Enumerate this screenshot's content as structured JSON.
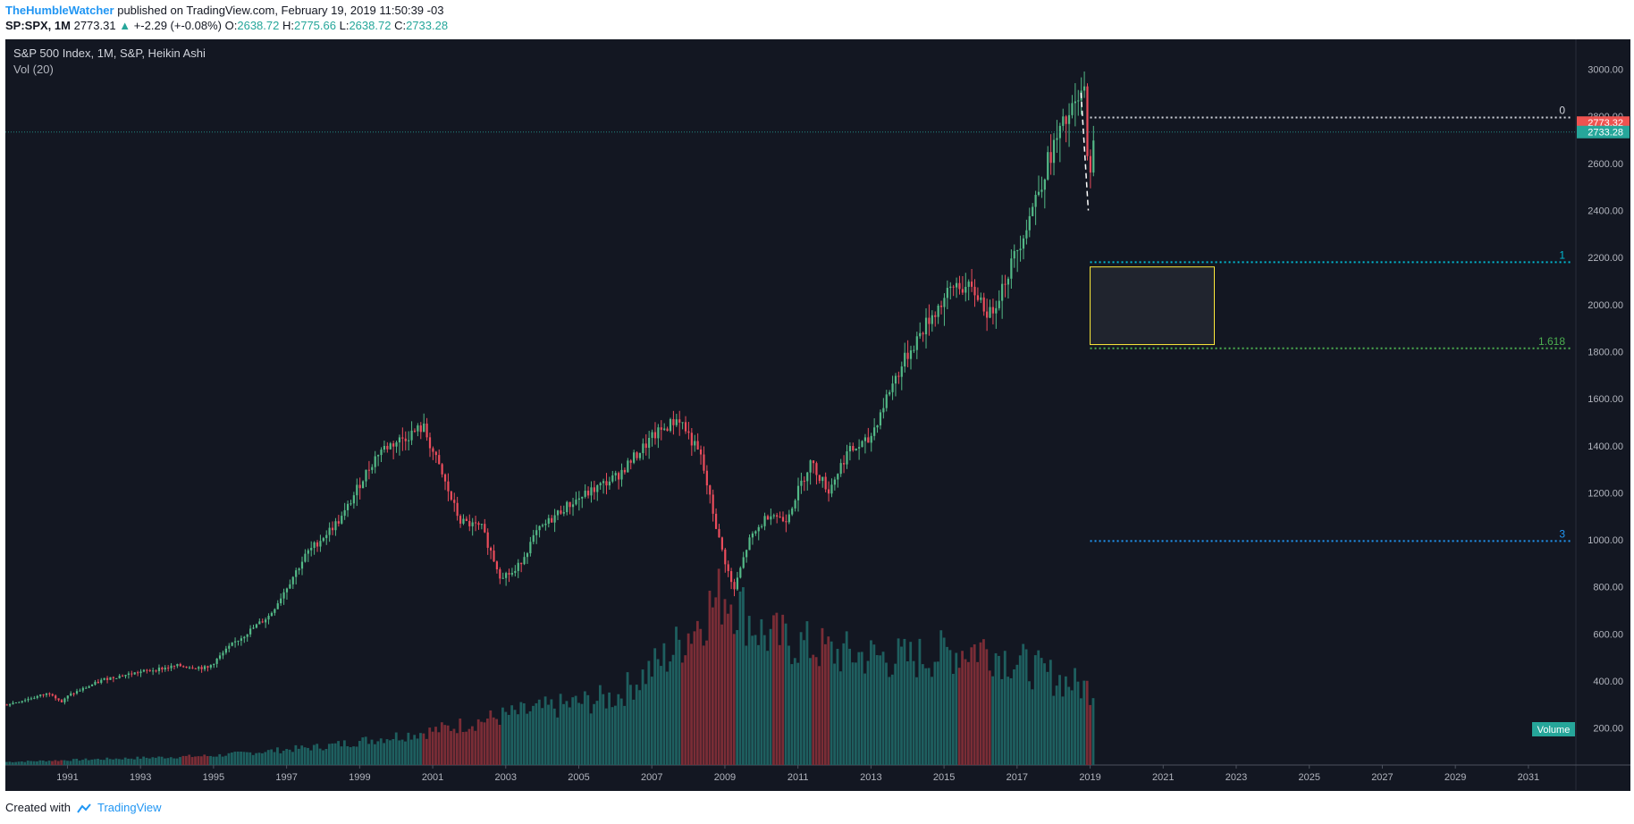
{
  "header": {
    "author": "TheHumbleWatcher",
    "published": "published on TradingView.com, February 19, 2019 11:50:39 -03",
    "symbol": "SP:SPX, 1M",
    "last": "2773.31",
    "change": "+-2.29 (+-0.08%)",
    "o_label": "O:",
    "o_value": "2638.72",
    "h_label": "H:",
    "h_value": "2775.66",
    "l_label": "L:",
    "l_value": "2638.72",
    "c_label": "C:",
    "c_value": "2733.28"
  },
  "legend": {
    "title": "S&P 500 Index, 1M, S&P, Heikin Ashi",
    "volume_study": "Vol (20)"
  },
  "footer": {
    "created_with": "Created with",
    "brand": "TradingView"
  },
  "colors": {
    "background": "#131722",
    "up": "#53b987",
    "down": "#eb4d5c",
    "volume_up": "#1e5f5f",
    "volume_down": "#7a2d36",
    "fib_0": "#d1d4dc",
    "fib_1": "#00bcd4",
    "fib_1618": "#4caf50",
    "fib_3": "#2196f3",
    "box_border": "#ffeb3b"
  },
  "chart_data": {
    "type": "candlestick",
    "title": "S&P 500 Index, 1M, S&P, Heikin Ashi",
    "x_axis_ticks": [
      "1991",
      "1993",
      "1995",
      "1997",
      "1999",
      "2001",
      "2003",
      "2005",
      "2007",
      "2009",
      "2011",
      "2013",
      "2015",
      "2017",
      "2019",
      "2021",
      "2023",
      "2025",
      "2027",
      "2029",
      "2031"
    ],
    "x_range": [
      1989.3,
      2032.3
    ],
    "y_axis_ticks": [
      "3000.00",
      "2800.00",
      "2600.00",
      "2400.00",
      "2200.00",
      "2000.00",
      "1800.00",
      "1600.00",
      "1400.00",
      "1200.00",
      "1000.00",
      "800.00",
      "600.00",
      "400.00",
      "200.00"
    ],
    "y_range": [
      100,
      3040
    ],
    "price_path": [
      [
        1989.3,
        300
      ],
      [
        1990.5,
        350
      ],
      [
        1990.8,
        310
      ],
      [
        1991.0,
        340
      ],
      [
        1992.0,
        410
      ],
      [
        1993.0,
        440
      ],
      [
        1994.0,
        465
      ],
      [
        1994.8,
        455
      ],
      [
        1995.5,
        560
      ],
      [
        1996.5,
        680
      ],
      [
        1997.5,
        940
      ],
      [
        1998.5,
        1100
      ],
      [
        1999.0,
        1250
      ],
      [
        1999.5,
        1380
      ],
      [
        2000.0,
        1420
      ],
      [
        2000.7,
        1480
      ],
      [
        2001.2,
        1280
      ],
      [
        2001.7,
        1080
      ],
      [
        2002.3,
        1050
      ],
      [
        2002.8,
        850
      ],
      [
        2003.2,
        860
      ],
      [
        2003.8,
        1030
      ],
      [
        2004.5,
        1130
      ],
      [
        2005.0,
        1180
      ],
      [
        2006.0,
        1270
      ],
      [
        2007.0,
        1440
      ],
      [
        2007.7,
        1520
      ],
      [
        2008.3,
        1350
      ],
      [
        2008.8,
        1000
      ],
      [
        2009.2,
        780
      ],
      [
        2009.6,
        990
      ],
      [
        2010.2,
        1120
      ],
      [
        2010.6,
        1080
      ],
      [
        2011.3,
        1330
      ],
      [
        2011.8,
        1210
      ],
      [
        2012.3,
        1370
      ],
      [
        2012.9,
        1420
      ],
      [
        2013.5,
        1650
      ],
      [
        2014.0,
        1800
      ],
      [
        2014.6,
        1950
      ],
      [
        2015.3,
        2090
      ],
      [
        2015.9,
        2040
      ],
      [
        2016.2,
        1950
      ],
      [
        2016.8,
        2170
      ],
      [
        2017.3,
        2380
      ],
      [
        2017.9,
        2650
      ],
      [
        2018.2,
        2750
      ],
      [
        2018.7,
        2880
      ],
      [
        2018.8,
        2900
      ],
      [
        2018.95,
        2500
      ],
      [
        2019.05,
        2670
      ],
      [
        2019.12,
        2733
      ]
    ],
    "volume_path": [
      [
        1989.3,
        10
      ],
      [
        1995.0,
        30
      ],
      [
        1998.0,
        60
      ],
      [
        2001.0,
        110
      ],
      [
        2003.0,
        160
      ],
      [
        2006.0,
        220
      ],
      [
        2007.5,
        360
      ],
      [
        2008.5,
        500
      ],
      [
        2009.0,
        560
      ],
      [
        2010.0,
        420
      ],
      [
        2012.0,
        360
      ],
      [
        2014.0,
        340
      ],
      [
        2016.0,
        380
      ],
      [
        2018.0,
        280
      ],
      [
        2019.1,
        240
      ]
    ],
    "last_price_lines": [
      {
        "label": "2773.32",
        "value": 2773.32,
        "color": "#ef5350"
      },
      {
        "label": "2733.28",
        "value": 2733.28,
        "color": "#26a69a"
      }
    ],
    "fib_levels": [
      {
        "label": "0",
        "value": 2795,
        "color": "#d1d4dc"
      },
      {
        "label": "1",
        "value": 2180,
        "color": "#00bcd4"
      },
      {
        "label": "1.618",
        "value": 1814,
        "color": "#4caf50"
      },
      {
        "label": "3",
        "value": 995,
        "color": "#2196f3"
      }
    ],
    "fib_start_x": 2019.0,
    "highlight_box": {
      "x0": 2019.0,
      "x1": 2022.4,
      "y0": 1830,
      "y1": 2160
    },
    "volume_label": "Volume"
  }
}
